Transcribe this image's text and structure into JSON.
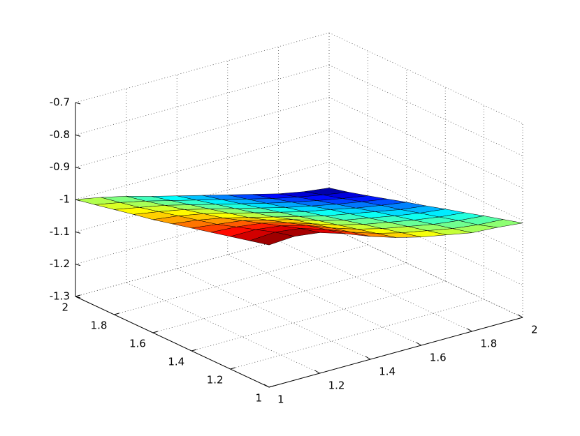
{
  "chart_data": {
    "type": "surface",
    "x": [
      1,
      1.1,
      1.2,
      1.3,
      1.4,
      1.5,
      1.6,
      1.7,
      1.8,
      1.9,
      2
    ],
    "y": [
      1,
      1.1,
      1.2,
      1.3,
      1.4,
      1.5,
      1.6,
      1.7,
      1.8,
      1.9,
      2
    ],
    "z": [
      [
        -0.86,
        -0.855,
        -0.865,
        -0.89,
        -0.92,
        -0.945,
        -0.965,
        -0.98,
        -0.995,
        -1.0,
        -1.008
      ],
      [
        -0.875,
        -0.87,
        -0.88,
        -0.905,
        -0.935,
        -0.96,
        -0.98,
        -0.995,
        -1.01,
        -1.02,
        -1.025
      ],
      [
        -0.89,
        -0.89,
        -0.9,
        -0.92,
        -0.95,
        -0.975,
        -0.995,
        -1.01,
        -1.025,
        -1.035,
        -1.042
      ],
      [
        -0.905,
        -0.91,
        -0.92,
        -0.94,
        -0.965,
        -0.99,
        -1.01,
        -1.025,
        -1.04,
        -1.052,
        -1.06
      ],
      [
        -0.92,
        -0.93,
        -0.94,
        -0.96,
        -0.98,
        -1.005,
        -1.025,
        -1.04,
        -1.055,
        -1.068,
        -1.077
      ],
      [
        -0.935,
        -0.945,
        -0.96,
        -0.98,
        -1.0,
        -1.02,
        -1.04,
        -1.055,
        -1.07,
        -1.085,
        -1.095
      ],
      [
        -0.95,
        -0.96,
        -0.975,
        -0.995,
        -1.015,
        -1.035,
        -1.055,
        -1.07,
        -1.087,
        -1.1,
        -1.112
      ],
      [
        -0.962,
        -0.975,
        -0.99,
        -1.01,
        -1.03,
        -1.05,
        -1.07,
        -1.087,
        -1.103,
        -1.117,
        -1.13
      ],
      [
        -0.975,
        -0.99,
        -1.005,
        -1.025,
        -1.045,
        -1.065,
        -1.085,
        -1.103,
        -1.12,
        -1.135,
        -1.148
      ],
      [
        -0.988,
        -1.003,
        -1.02,
        -1.04,
        -1.06,
        -1.08,
        -1.1,
        -1.12,
        -1.137,
        -1.152,
        -1.165
      ],
      [
        -1.0,
        -1.015,
        -1.033,
        -1.055,
        -1.075,
        -1.095,
        -1.115,
        -1.135,
        -1.155,
        -1.17,
        -1.18
      ]
    ],
    "xlim": [
      1,
      2
    ],
    "ylim": [
      1,
      2
    ],
    "zlim": [
      -1.3,
      -0.7
    ],
    "xticks": [
      1,
      1.2,
      1.4,
      1.6,
      1.8,
      2
    ],
    "yticks": [
      1,
      1.2,
      1.4,
      1.6,
      1.8,
      2
    ],
    "zticks": [
      -1.3,
      -1.2,
      -1.1,
      -1,
      -0.9,
      -0.8,
      -0.7
    ],
    "colormap": "jet",
    "grid": true
  }
}
